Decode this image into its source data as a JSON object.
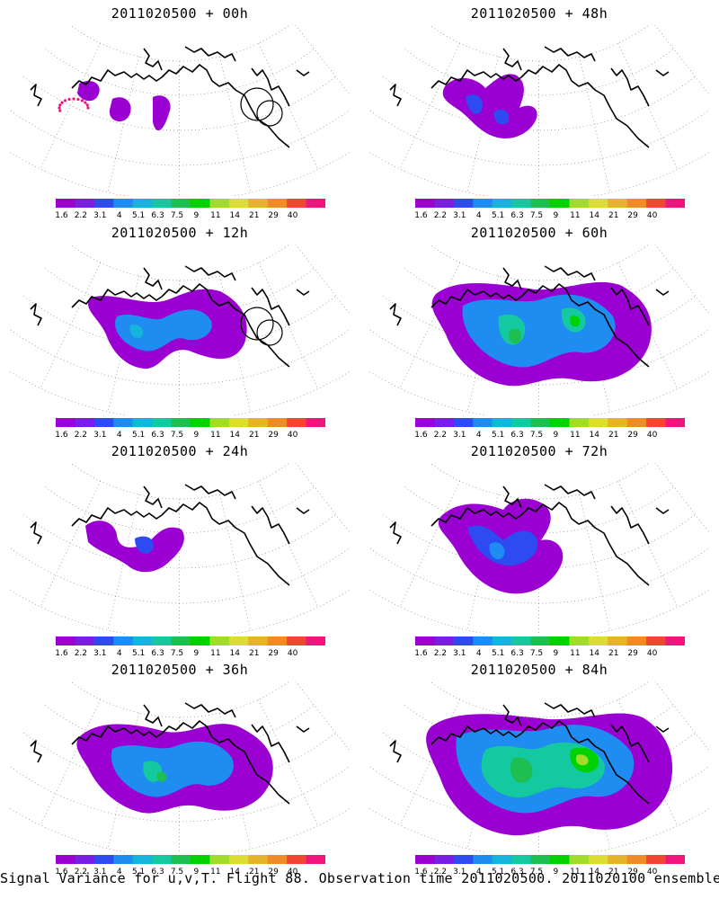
{
  "panels": [
    {
      "title": "2011020500 + 00h",
      "level": 0
    },
    {
      "title": "2011020500 + 48h",
      "level": 4
    },
    {
      "title": "2011020500 + 12h",
      "level": 1
    },
    {
      "title": "2011020500 + 60h",
      "level": 5
    },
    {
      "title": "2011020500 + 24h",
      "level": 2
    },
    {
      "title": "2011020500 + 72h",
      "level": 6
    },
    {
      "title": "2011020500 + 36h",
      "level": 3
    },
    {
      "title": "2011020500 + 84h",
      "level": 7
    }
  ],
  "colorbar": {
    "labels": [
      "1.6",
      "2.2",
      "3.1",
      "4",
      "5.1",
      "6.3",
      "7.5",
      "9",
      "11",
      "14",
      "21",
      "29",
      "40"
    ],
    "colors": [
      "#9b00d2",
      "#7a1ee6",
      "#2d4bf0",
      "#1e8cf0",
      "#14b4dc",
      "#14c8a0",
      "#1ebe50",
      "#00d200",
      "#a0dc28",
      "#dcdc32",
      "#e6b428",
      "#f08c28",
      "#f04632",
      "#f0147d"
    ]
  },
  "footer": "Signal Variance for u,v,T. Flight 88. Observation time 2011020500. 2011020100 ensemble."
}
